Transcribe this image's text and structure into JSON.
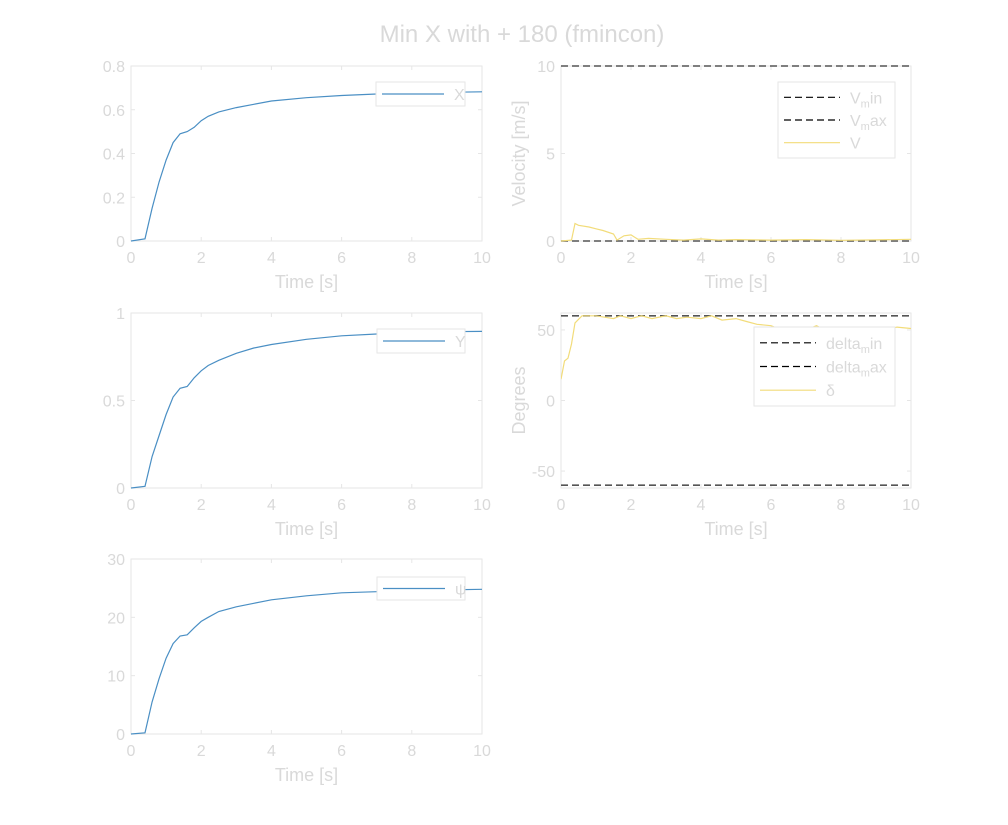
{
  "figure": {
    "title": "Min X with + 180 (fmincon)"
  },
  "colors": {
    "series_blue": "#4a8fc4",
    "series_yellow": "#f2dc7a",
    "bound_dark": "#555555",
    "bound_black": "#000000",
    "text": "#d9d9d9",
    "frame": "#e6e6e6"
  },
  "chart_data": [
    {
      "id": "x",
      "type": "line",
      "xlabel": "Time [s]",
      "ylabel": "",
      "xlim": [
        0,
        10
      ],
      "ylim": [
        0,
        0.8
      ],
      "xticks": [
        "0",
        "2",
        "4",
        "6",
        "8",
        "10"
      ],
      "yticks": [
        "0",
        "0.2",
        "0.4",
        "0.6",
        "0.8"
      ],
      "legend_position": "top-right",
      "series": [
        {
          "name": "X",
          "style": "solid",
          "color": "#4a8fc4",
          "x": [
            0,
            0.4,
            0.6,
            0.8,
            1.0,
            1.2,
            1.4,
            1.6,
            1.8,
            2.0,
            2.2,
            2.5,
            3.0,
            3.5,
            4.0,
            5.0,
            6.0,
            7.0,
            8.0,
            9.0,
            10.0
          ],
          "y": [
            0,
            0.01,
            0.15,
            0.27,
            0.37,
            0.45,
            0.49,
            0.5,
            0.52,
            0.55,
            0.57,
            0.59,
            0.61,
            0.625,
            0.64,
            0.655,
            0.665,
            0.672,
            0.677,
            0.68,
            0.682
          ]
        }
      ]
    },
    {
      "id": "velocity",
      "type": "line",
      "xlabel": "Time [s]",
      "ylabel": "Velocity [m/s]",
      "xlim": [
        0,
        10
      ],
      "ylim": [
        0,
        10
      ],
      "xticks": [
        "0",
        "2",
        "4",
        "6",
        "8",
        "10"
      ],
      "yticks": [
        "0",
        "5",
        "10"
      ],
      "legend_position": "top-right",
      "series": [
        {
          "name": "V",
          "name_sub": "m",
          "name_suffix": "in",
          "style": "dashed",
          "color": "#555555",
          "legend_color": "#000000",
          "x": [
            0,
            10
          ],
          "y": [
            0,
            0
          ]
        },
        {
          "name": "V",
          "name_sub": "m",
          "name_suffix": "ax",
          "style": "dashed",
          "color": "#555555",
          "legend_color": "#000000",
          "x": [
            0,
            10
          ],
          "y": [
            10,
            10
          ]
        },
        {
          "name": "V",
          "style": "solid",
          "color": "#f2dc7a",
          "x": [
            0,
            0.3,
            0.4,
            0.5,
            0.8,
            1.0,
            1.2,
            1.5,
            1.6,
            1.8,
            2.0,
            2.2,
            2.5,
            3.0,
            3.5,
            4.0,
            4.5,
            5.0,
            6.0,
            7.0,
            8.0,
            9.0,
            10.0
          ],
          "y": [
            0,
            0.05,
            1.0,
            0.9,
            0.8,
            0.7,
            0.6,
            0.4,
            0.05,
            0.3,
            0.35,
            0.1,
            0.15,
            0.1,
            0.05,
            0.12,
            0.05,
            0.08,
            0.05,
            0.08,
            0.04,
            0.06,
            0.1
          ]
        }
      ]
    },
    {
      "id": "y",
      "type": "line",
      "xlabel": "Time [s]",
      "ylabel": "",
      "xlim": [
        0,
        10
      ],
      "ylim": [
        0,
        1
      ],
      "xticks": [
        "0",
        "2",
        "4",
        "6",
        "8",
        "10"
      ],
      "yticks": [
        "0",
        "0.5",
        "1"
      ],
      "legend_position": "top-right",
      "series": [
        {
          "name": "Y",
          "style": "solid",
          "color": "#4a8fc4",
          "x": [
            0,
            0.4,
            0.6,
            0.8,
            1.0,
            1.2,
            1.4,
            1.6,
            1.8,
            2.0,
            2.2,
            2.5,
            3.0,
            3.5,
            4.0,
            5.0,
            6.0,
            7.0,
            8.0,
            9.0,
            10.0
          ],
          "y": [
            0,
            0.01,
            0.18,
            0.3,
            0.42,
            0.52,
            0.57,
            0.58,
            0.63,
            0.67,
            0.7,
            0.73,
            0.77,
            0.8,
            0.82,
            0.85,
            0.87,
            0.88,
            0.89,
            0.893,
            0.895
          ]
        }
      ]
    },
    {
      "id": "delta",
      "type": "line",
      "xlabel": "Time [s]",
      "ylabel": "Degrees",
      "xlim": [
        0,
        10
      ],
      "ylim": [
        -62,
        62
      ],
      "xticks": [
        "0",
        "2",
        "4",
        "6",
        "8",
        "10"
      ],
      "yticks": [
        "-50",
        "0",
        "50"
      ],
      "legend_position": "top-right",
      "series": [
        {
          "name": "delta",
          "name_sub": "m",
          "name_suffix": "in",
          "style": "dashed",
          "color": "#555555",
          "legend_color": "#000000",
          "x": [
            0,
            10
          ],
          "y": [
            -60,
            -60
          ]
        },
        {
          "name": "delta",
          "name_sub": "m",
          "name_suffix": "ax",
          "style": "dashed",
          "color": "#555555",
          "legend_color": "#000000",
          "x": [
            0,
            10
          ],
          "y": [
            60,
            60
          ]
        },
        {
          "name": "δ",
          "style": "solid",
          "color": "#f2dc7a",
          "x": [
            0,
            0.1,
            0.2,
            0.3,
            0.4,
            0.6,
            1.0,
            1.5,
            1.7,
            2.0,
            2.3,
            2.6,
            3.0,
            3.3,
            3.6,
            4.0,
            4.3,
            4.6,
            5.0,
            5.3,
            5.6,
            6.0,
            6.3,
            6.6,
            7.0,
            7.3,
            7.6,
            8.0,
            8.5,
            9.0,
            9.3,
            9.6,
            10.0
          ],
          "y": [
            15,
            28,
            30,
            40,
            55,
            60,
            60,
            58,
            60,
            58,
            60,
            58,
            60,
            58,
            59,
            58,
            60,
            57,
            58,
            56,
            54,
            53,
            50,
            52,
            50,
            53,
            49,
            50,
            50,
            49,
            50,
            52,
            51
          ]
        }
      ]
    },
    {
      "id": "psi",
      "type": "line",
      "xlabel": "Time [s]",
      "ylabel": "",
      "xlim": [
        0,
        10
      ],
      "ylim": [
        0,
        30
      ],
      "xticks": [
        "0",
        "2",
        "4",
        "6",
        "8",
        "10"
      ],
      "yticks": [
        "0",
        "10",
        "20",
        "30"
      ],
      "legend_position": "top-right",
      "series": [
        {
          "name": "ψ",
          "style": "solid",
          "color": "#4a8fc4",
          "x": [
            0,
            0.4,
            0.6,
            0.8,
            1.0,
            1.2,
            1.4,
            1.6,
            1.8,
            2.0,
            2.2,
            2.5,
            3.0,
            3.5,
            4.0,
            5.0,
            6.0,
            7.0,
            8.0,
            9.0,
            10.0
          ],
          "y": [
            0,
            0.2,
            5.5,
            9.5,
            13,
            15.5,
            16.8,
            17,
            18.2,
            19.3,
            20,
            21,
            21.8,
            22.4,
            23,
            23.7,
            24.2,
            24.4,
            24.6,
            24.7,
            24.8
          ]
        }
      ]
    }
  ]
}
